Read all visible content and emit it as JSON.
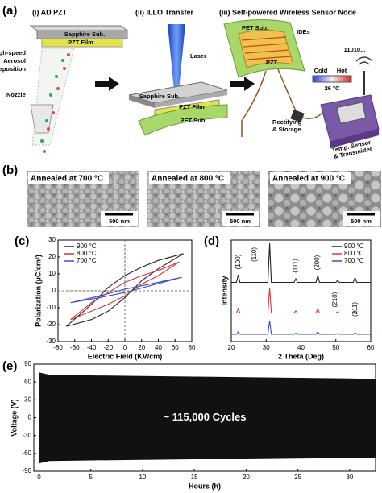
{
  "panel_a": {
    "label": "(a)",
    "step_titles": [
      "(i) AD PZT",
      "(ii) ILLO Transfer",
      "(iii) Self-powered Wireless Sensor Node"
    ],
    "step1": {
      "substrate": "Sapphire Sub.",
      "film": "PZT Film",
      "process": [
        "High-speed",
        "Aerosol",
        "Deposition"
      ],
      "nozzle": "Nozzle"
    },
    "step2": {
      "laser": "Laser",
      "substrate": "Sapphire Sub.",
      "film": "PZT Film",
      "target": "PET Sub."
    },
    "step3": {
      "substrate": "PET Sub.",
      "electrodes": "IDEs",
      "film": "PZT",
      "cold": "Cold",
      "hot": "Hot",
      "temperature": "26 °C",
      "signal": "11010...",
      "storage": [
        "Rectifying",
        "& Storage"
      ],
      "sensor": [
        "Temp. Sensor",
        "& Transmitter"
      ]
    }
  },
  "panel_b": {
    "label": "(b)",
    "images": [
      {
        "caption": "Annealed at 700 °C",
        "scale": "500 nm"
      },
      {
        "caption": "Annealed at 800 °C",
        "scale": "500 nm"
      },
      {
        "caption": "Annealed at 900 °C",
        "scale": "500 nm"
      }
    ]
  },
  "chart_data": [
    {
      "type": "line",
      "label": "(c)",
      "x_label": "Electric Field (KV/cm)",
      "y_label": "Polarization (µC/cm²)",
      "xlim": [
        -80,
        80
      ],
      "xticks": [
        -80,
        -60,
        -40,
        -20,
        0,
        20,
        40,
        60,
        80
      ],
      "ylim": [
        -30,
        30
      ],
      "yticks": [
        -30,
        -20,
        -10,
        0,
        10,
        20,
        30
      ],
      "legend": "upper left",
      "series": [
        {
          "name": "900 °C",
          "color": "#222222",
          "x": [
            -70,
            -40,
            -20,
            0,
            20,
            40,
            70,
            40,
            20,
            0,
            -20,
            -40,
            -70
          ],
          "values": [
            -21,
            -8,
            2,
            9,
            14,
            18,
            22,
            13,
            6,
            -4,
            -12,
            -17,
            -21
          ]
        },
        {
          "name": "800 °C",
          "color": "#d9343b",
          "x": [
            -65,
            -40,
            -20,
            0,
            20,
            40,
            65,
            40,
            20,
            0,
            -20,
            -40,
            -65
          ],
          "values": [
            -17,
            -7,
            -1,
            5,
            9,
            12,
            17,
            9,
            4,
            -3,
            -8,
            -12,
            -17
          ]
        },
        {
          "name": "700 °C",
          "color": "#3b4fc4",
          "x": [
            -65,
            -30,
            0,
            30,
            68,
            30,
            0,
            -30,
            -65
          ],
          "values": [
            -7,
            -3,
            1,
            4,
            8,
            3,
            -1,
            -4,
            -7
          ]
        }
      ]
    },
    {
      "type": "line",
      "label": "(d)",
      "x_label": "2 Theta (Deg)",
      "y_label": "Intensity",
      "legend": "upper right",
      "xlim": [
        20,
        60
      ],
      "xticks": [
        20,
        30,
        40,
        50,
        60
      ],
      "peak_labels": [
        "(100)",
        "(110)",
        "(111)",
        "(200)",
        "(210)",
        "(211)"
      ],
      "x": [
        20,
        21.5,
        22,
        22.5,
        30.5,
        31,
        31.5,
        38,
        38.5,
        39,
        44.3,
        44.8,
        45.3,
        50,
        50.5,
        51,
        55,
        55.5,
        56,
        60
      ],
      "series": [
        {
          "name": "900 °C",
          "color": "#222222",
          "values": [
            3,
            3,
            22,
            3,
            3,
            100,
            3,
            3,
            12,
            3,
            3,
            20,
            3,
            3,
            8,
            3,
            3,
            15,
            3,
            3
          ]
        },
        {
          "name": "800 °C",
          "color": "#d9343b",
          "values": [
            3,
            3,
            14,
            3,
            3,
            65,
            3,
            3,
            8,
            3,
            3,
            13,
            3,
            3,
            6,
            3,
            3,
            10,
            3,
            3
          ]
        },
        {
          "name": "700 °C",
          "color": "#3b4fc4",
          "values": [
            2,
            2,
            8,
            2,
            2,
            36,
            2,
            2,
            5,
            2,
            2,
            8,
            2,
            2,
            4,
            2,
            2,
            6,
            2,
            2
          ]
        }
      ]
    },
    {
      "type": "band",
      "label": "(e)",
      "x_label": "Hours (h)",
      "y_label": "Voltage (V)",
      "annotation": "~ 115,000 Cycles",
      "xlim": [
        -0.5,
        32.5
      ],
      "xticks": [
        0,
        5,
        10,
        15,
        20,
        25,
        30
      ],
      "ylim": [
        -90,
        90
      ],
      "yticks": [
        -90,
        -60,
        -30,
        0,
        30,
        60,
        90
      ],
      "color": "#111111",
      "x": [
        0,
        1,
        5,
        10,
        15,
        20,
        25,
        30,
        32.5
      ],
      "upper": [
        76,
        72,
        71,
        70,
        69,
        68,
        67,
        66,
        65
      ],
      "lower": [
        -76,
        -72,
        -71,
        -70,
        -69,
        -69,
        -68,
        -67,
        -67
      ]
    }
  ]
}
